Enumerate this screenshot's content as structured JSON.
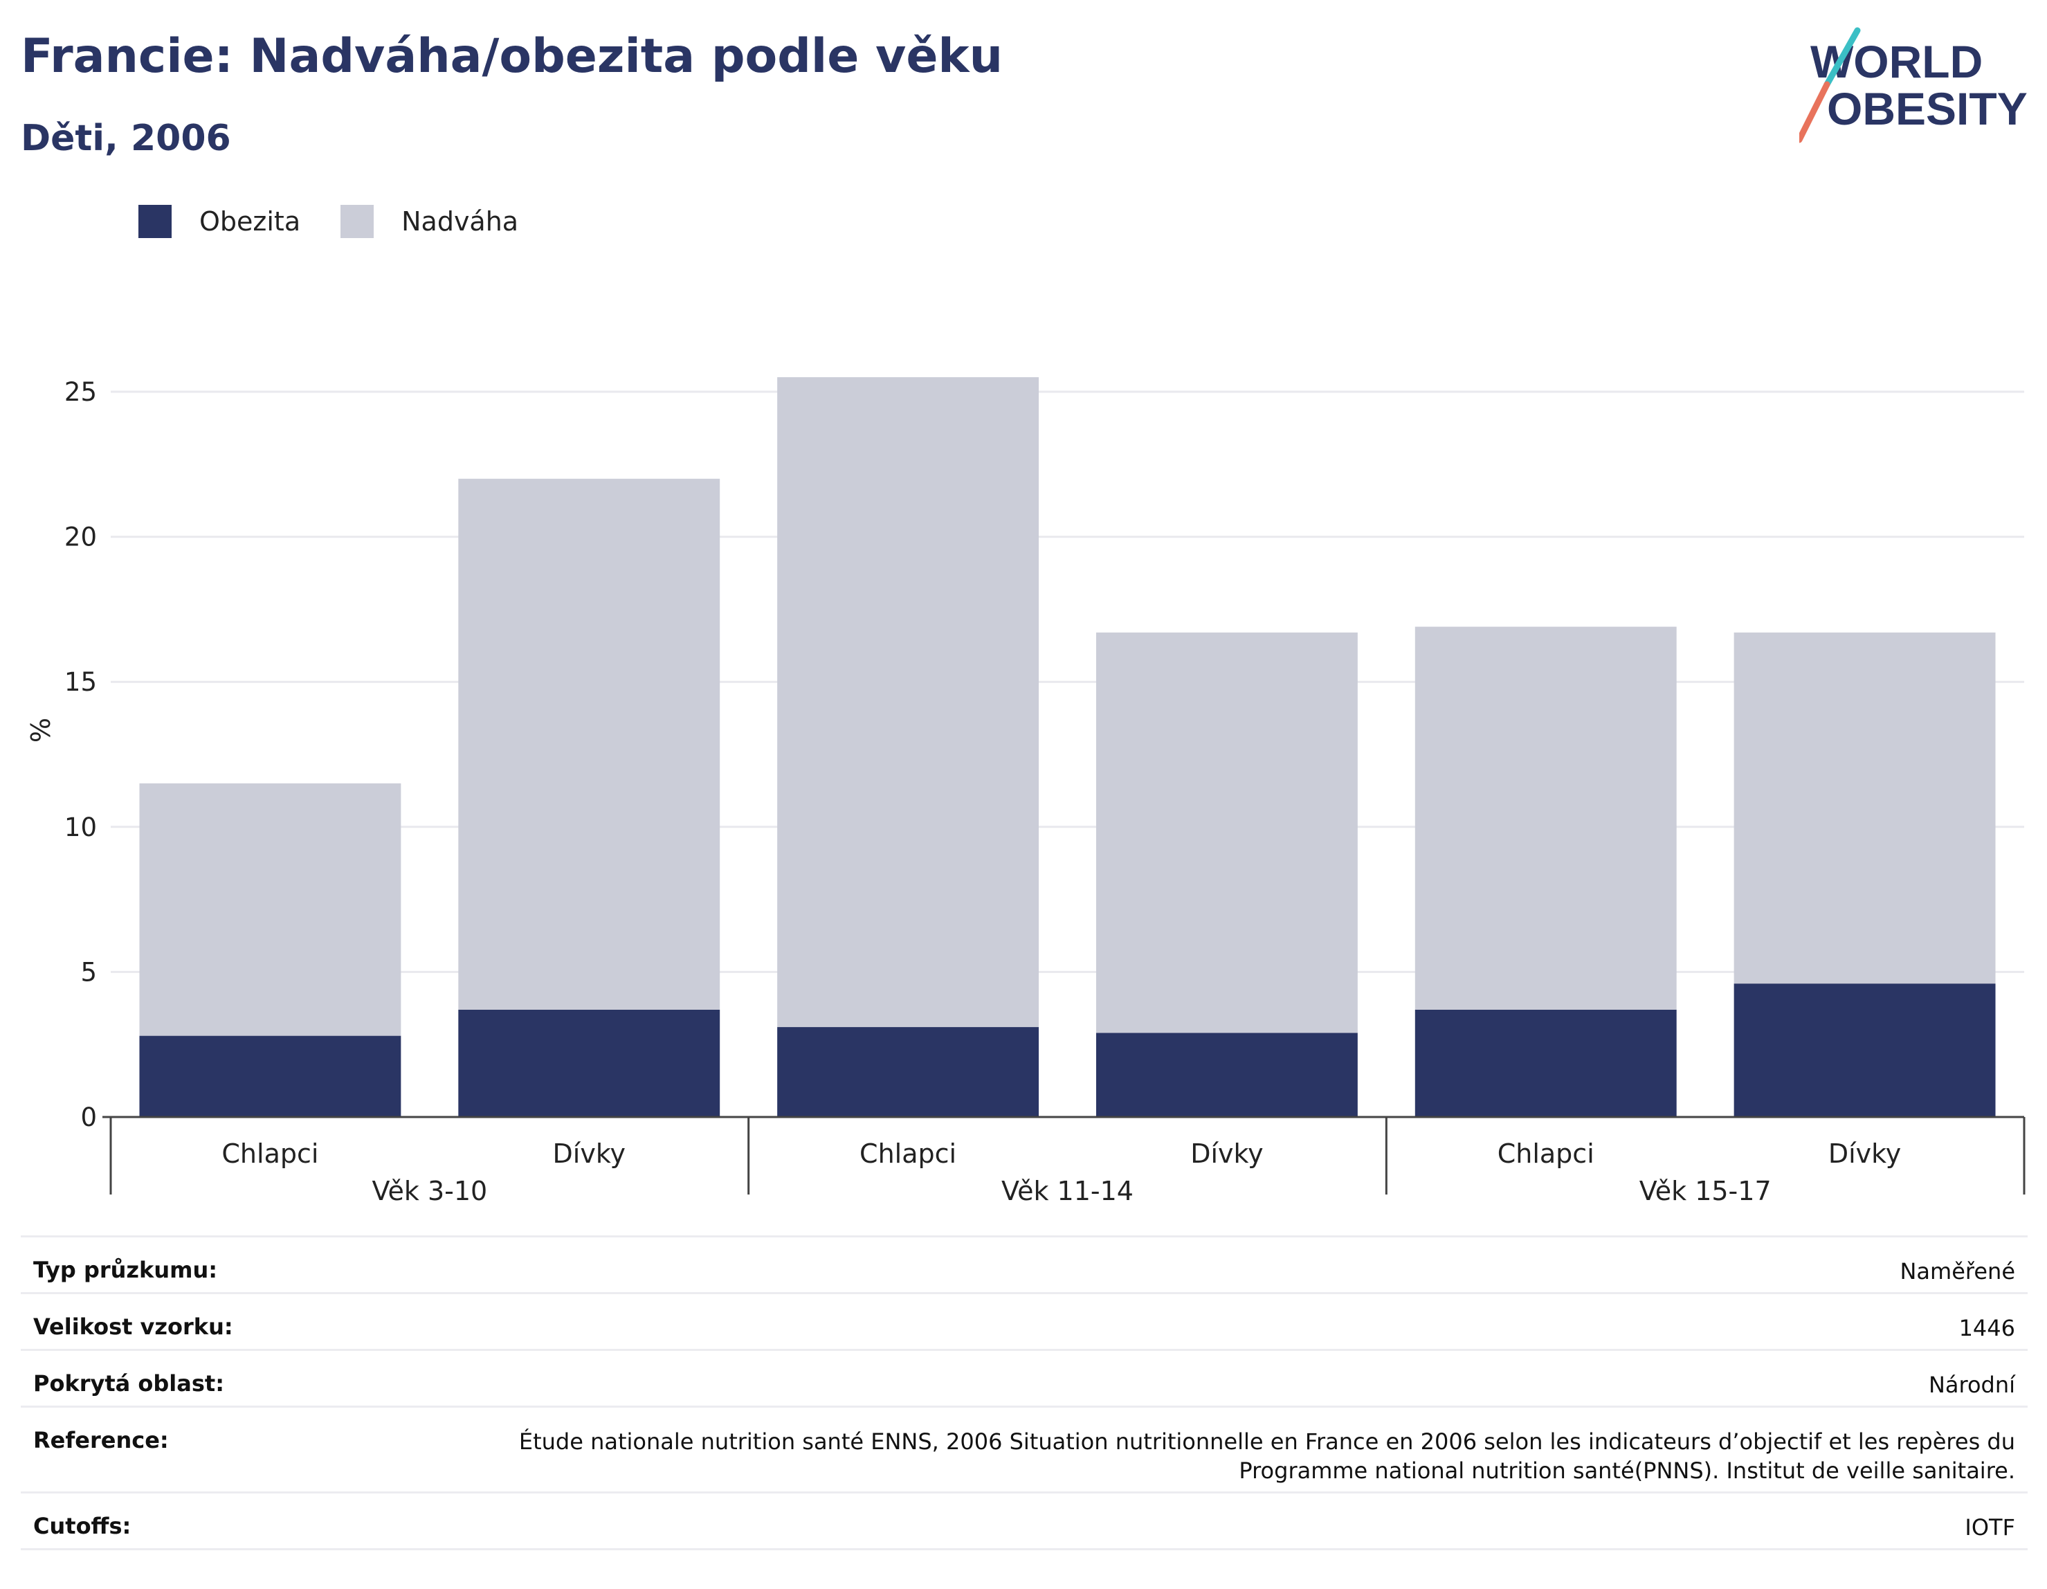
{
  "header": {
    "title": "Francie: Nadváha/obezita podle věku",
    "subtitle": "Děti, 2006"
  },
  "logo": {
    "line1": "WORLD",
    "line2": "OBESITY"
  },
  "colors": {
    "obezita": "#2a3564",
    "nadvaha": "#cbcdd8",
    "accent_teal": "#3bbfc5",
    "accent_coral": "#e8735c"
  },
  "chart_data": {
    "type": "bar",
    "stacked": true,
    "ylabel": "%",
    "ylim": [
      0,
      27
    ],
    "yticks": [
      0,
      5,
      10,
      15,
      20,
      25
    ],
    "legend": [
      "Obezita",
      "Nadváha"
    ],
    "groups": [
      "Věk 3-10",
      "Věk 11-14",
      "Věk 15-17"
    ],
    "categories": [
      "Chlapci",
      "Dívky",
      "Chlapci",
      "Dívky",
      "Chlapci",
      "Dívky"
    ],
    "series": [
      {
        "name": "Obezita",
        "values": [
          2.8,
          3.7,
          3.1,
          2.9,
          3.7,
          4.6
        ]
      },
      {
        "name": "Nadváha",
        "values": [
          8.7,
          18.3,
          22.4,
          13.8,
          13.2,
          12.1
        ]
      }
    ],
    "grid": true
  },
  "info": [
    {
      "label": "Typ průzkumu:",
      "value": "Naměřené"
    },
    {
      "label": "Velikost vzorku:",
      "value": "1446"
    },
    {
      "label": "Pokrytá oblast:",
      "value": "Národní"
    },
    {
      "label": "Reference:",
      "value": "Étude nationale nutrition santé ENNS, 2006 Situation nutritionnelle en France en 2006 selon les indicateurs d’objectif et les repères du Programme national nutrition santé(PNNS). Institut de veille sanitaire."
    },
    {
      "label": "Cutoffs:",
      "value": "IOTF"
    }
  ]
}
